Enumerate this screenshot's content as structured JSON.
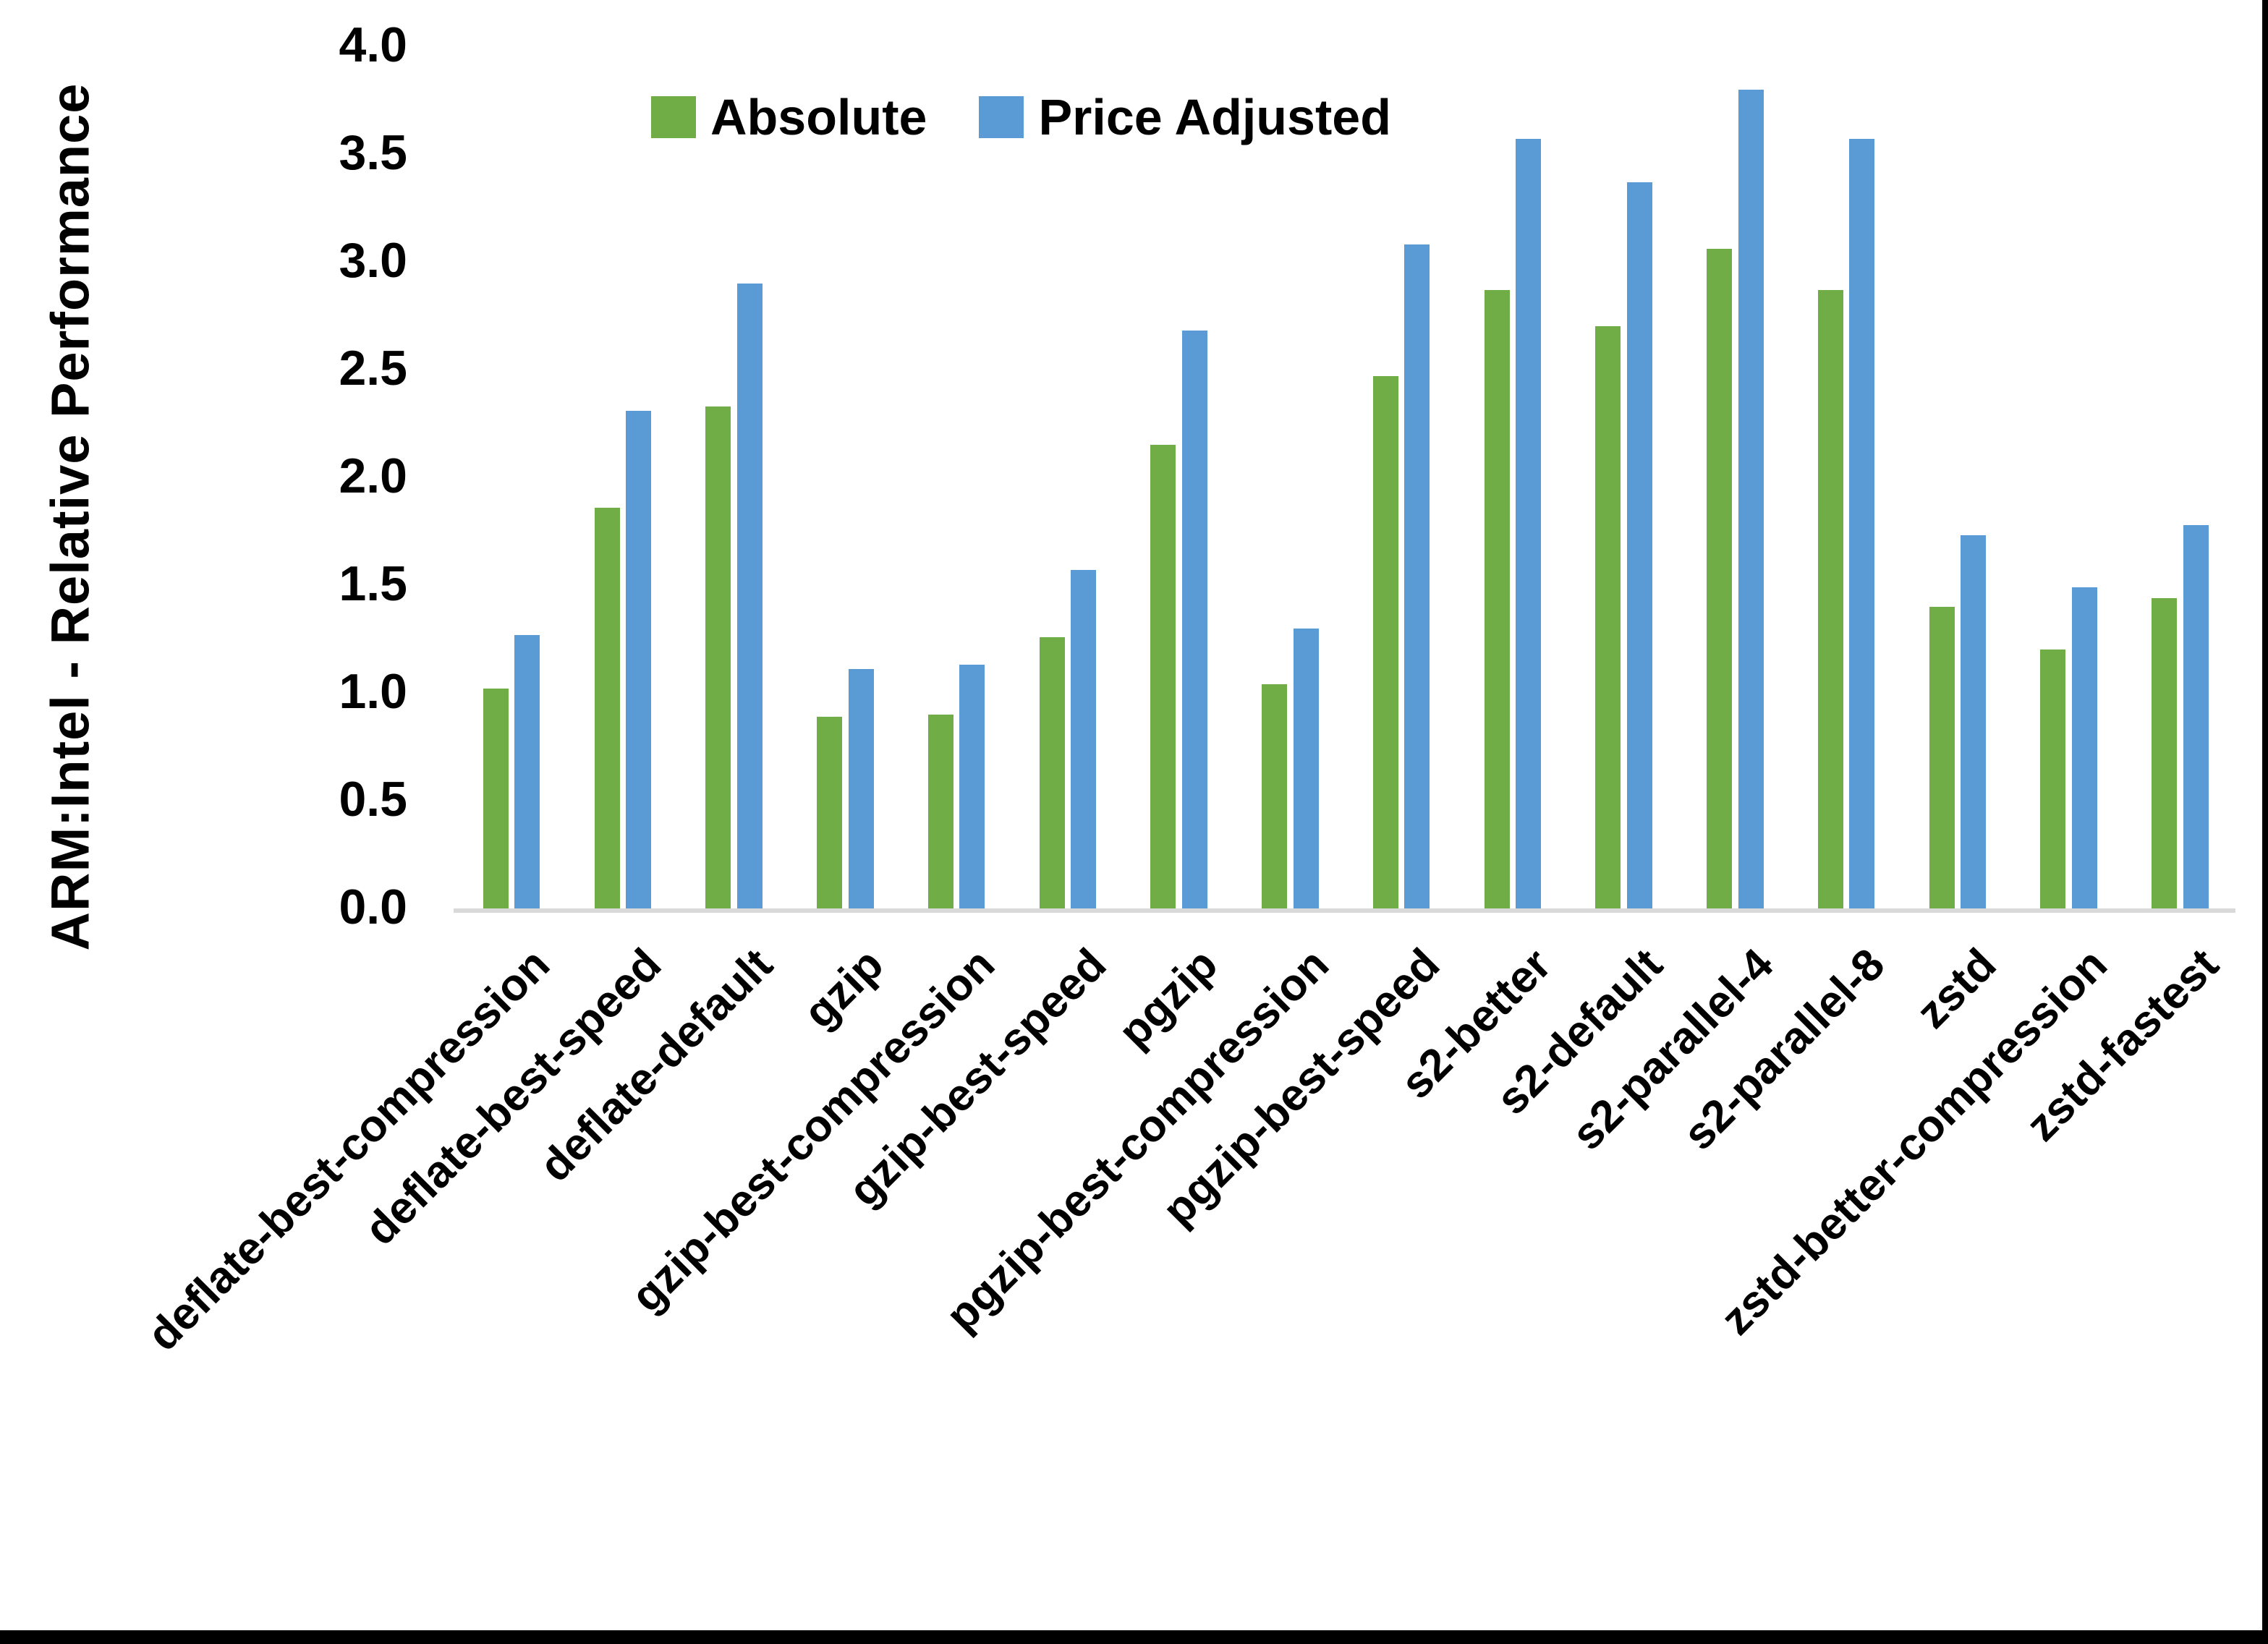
{
  "figure": {
    "background_color": "#FFFFFF",
    "border_right_color": "#000000",
    "border_bottom_color": "#000000"
  },
  "chart_data": {
    "type": "bar",
    "title": "",
    "xlabel": "",
    "ylabel": "ARM:Intel - Relative Performance",
    "ylim": [
      0.0,
      4.0
    ],
    "ytick_labels": [
      "0.0",
      "0.5",
      "1.0",
      "1.5",
      "2.0",
      "2.5",
      "3.0",
      "3.5",
      "4.0"
    ],
    "grid": false,
    "legend_position": "top-center",
    "axis_line_color": "#D9D9D9",
    "text_color": "#000000",
    "categories": [
      "deflate-best-compression",
      "deflate-best-speed",
      "deflate-default",
      "gzip",
      "gzip-best-compression",
      "gzip-best-speed",
      "pgzip",
      "pgzip-best-compression",
      "pgzip-best-speed",
      "s2-better",
      "s2-default",
      "s2-parallel-4",
      "s2-parallel-8",
      "zstd",
      "zstd-better-compression",
      "zstd-fastest"
    ],
    "series": [
      {
        "name": "Absolute",
        "color": "#70AD47",
        "values": [
          1.02,
          1.86,
          2.33,
          0.89,
          0.9,
          1.26,
          2.15,
          1.04,
          2.47,
          2.87,
          2.7,
          3.06,
          2.87,
          1.4,
          1.2,
          1.44
        ]
      },
      {
        "name": "Price Adjusted",
        "color": "#5B9BD5",
        "values": [
          1.27,
          2.31,
          2.9,
          1.11,
          1.13,
          1.57,
          2.68,
          1.3,
          3.08,
          3.57,
          3.37,
          3.8,
          3.57,
          1.73,
          1.49,
          1.78
        ]
      }
    ]
  }
}
